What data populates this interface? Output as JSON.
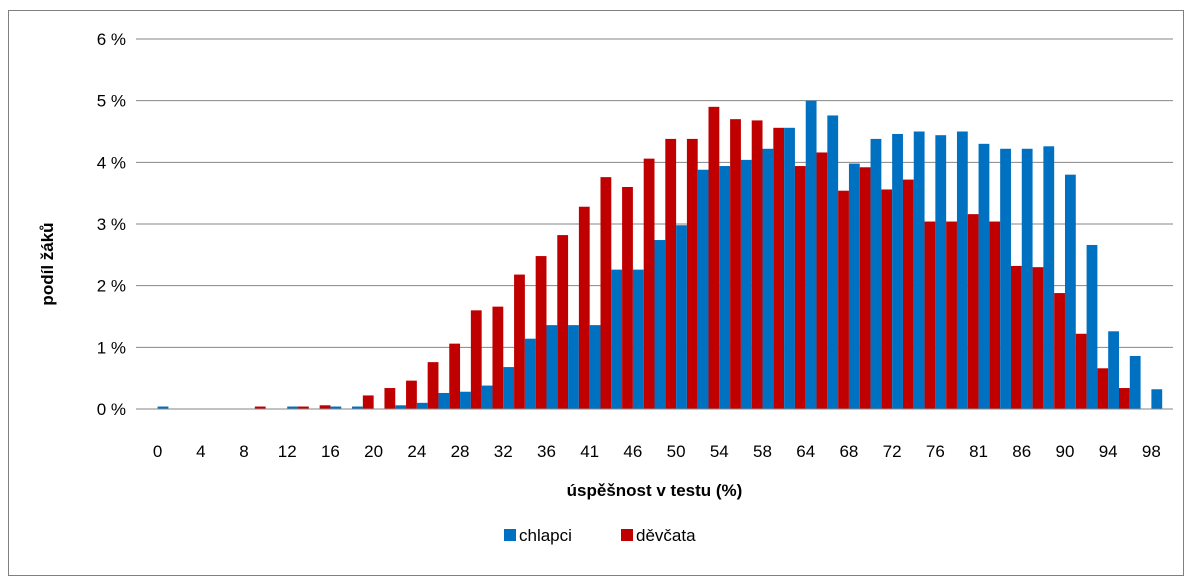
{
  "chart_data": {
    "type": "bar",
    "title": "",
    "xlabel": "úspěšnost v testu (%)",
    "ylabel": "podíl žáků",
    "ylim": [
      0,
      6
    ],
    "y_ticks": [
      "0 %",
      "1 %",
      "2 %",
      "3 %",
      "4 %",
      "5 %",
      "6 %"
    ],
    "x_tick_labels": [
      "0",
      "4",
      "8",
      "12",
      "16",
      "20",
      "24",
      "28",
      "32",
      "36",
      "41",
      "46",
      "50",
      "54",
      "58",
      "64",
      "68",
      "72",
      "76",
      "81",
      "86",
      "90",
      "94",
      "98"
    ],
    "grid": true,
    "legend_position": "bottom",
    "colors": {
      "chlapci": "#0070c0",
      "divky": "#c00000"
    },
    "series": [
      {
        "name": "chlapci",
        "values": [
          0,
          0.04,
          0,
          0,
          0,
          0,
          0,
          0.04,
          0,
          0.04,
          0.04,
          0,
          0.06,
          0.1,
          0.26,
          0.28,
          0.38,
          0.68,
          1.14,
          1.36,
          1.36,
          1.36,
          2.26,
          2.26,
          2.74,
          2.98,
          3.88,
          3.94,
          4.04,
          4.22,
          4.56,
          5.0,
          4.76,
          3.98,
          4.38,
          4.46,
          4.5,
          4.44,
          4.5,
          4.3,
          4.22,
          4.22,
          4.26,
          3.8,
          2.66,
          1.26,
          0.86,
          0.32
        ]
      },
      {
        "name": "děvčata",
        "values": [
          0,
          0,
          0,
          0,
          0,
          0.04,
          0,
          0.04,
          0.06,
          0,
          0.22,
          0.34,
          0.46,
          0.76,
          1.06,
          1.6,
          1.66,
          2.18,
          2.48,
          2.82,
          3.28,
          3.76,
          3.6,
          4.06,
          4.38,
          4.38,
          4.9,
          4.7,
          4.68,
          4.56,
          3.94,
          4.16,
          3.54,
          3.92,
          3.56,
          3.72,
          3.04,
          3.04,
          3.16,
          3.04,
          2.32,
          2.3,
          1.88,
          1.22,
          0.66,
          0.34,
          0,
          0
        ]
      }
    ]
  }
}
